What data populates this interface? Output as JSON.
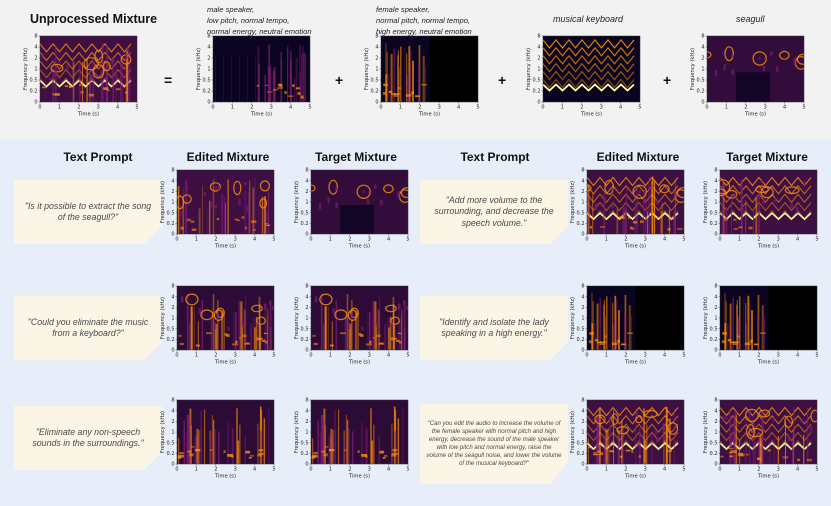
{
  "top": {
    "title": "Unprocessed Mixture",
    "equals": "=",
    "plus": "+",
    "sources": [
      {
        "lines": [
          "male speaker,",
          "low pitch, normal tempo,",
          "normal energy, neutral emotion"
        ]
      },
      {
        "lines": [
          "female speaker,",
          "normal pitch, normal tempo,",
          "high energy, neutral emotion"
        ]
      },
      {
        "lines": [
          "musical keyboard"
        ]
      },
      {
        "lines": [
          "seagull"
        ]
      }
    ]
  },
  "headers": {
    "text_prompt": "Text Prompt",
    "edited_mixture": "Edited Mixture",
    "target_mixture": "Target Mixture"
  },
  "prompts": [
    "\"Is it possible to extract the song of the seagull?\"",
    "\"Add more volume to the surrounding, and decrease the speech volume.\"",
    "\"Could you eliminate the music from a keyboard?\"",
    "\"Identify and isolate the lady speaking in a high energy.\"",
    "\"Eliminate any non-speech sounds in the surroundings.\"",
    "\"Can you edit the audio to increase the volume of the female speaker with normal pitch and high energy, decrease the sound of the male speaker with low pitch and normal energy, raise the volume of the seagull noise, and lower the volume of the musical keyboard?\""
  ],
  "axes": {
    "ylabel": "Frequency (kHz)",
    "xlabel": "Time (s)",
    "yticks": [
      "8",
      "4",
      "2",
      "1",
      "0.5",
      "0.2",
      "0"
    ],
    "xticks": [
      "0",
      "1",
      "2",
      "3",
      "4",
      "5"
    ]
  },
  "colors": {
    "top_bg": "#f2f2f2",
    "bottom_bg": "#e8eef9",
    "prompt_bg": "#fbf5e6",
    "spec_dark": "#0b0420",
    "spec_mid": "#7a1d6e",
    "spec_hot": "#f98e09",
    "spec_peak": "#fcffa4"
  }
}
